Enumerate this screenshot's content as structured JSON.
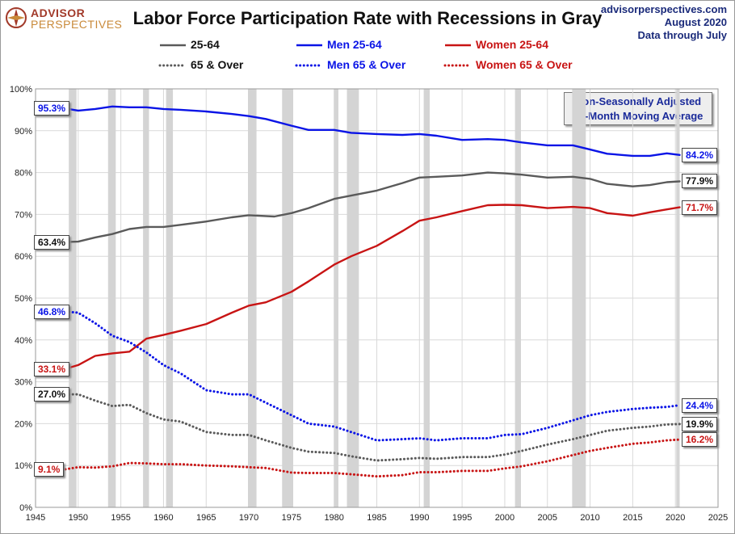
{
  "header": {
    "title": "Labor Force Participation Rate with Recessions in Gray",
    "logo_line1": "ADVISOR",
    "logo_line2": "PERSPECTIVES",
    "source_line1": "advisorperspectives.com",
    "source_line2": "August  2020",
    "source_line3": "Data through  July"
  },
  "note": {
    "line1": "Non-Seasonally Adjusted",
    "line2": "12-Month Moving Average"
  },
  "colors": {
    "gray": "#5a5a5a",
    "blue": "#0a14e6",
    "red": "#c81414",
    "recession": "#d4d4d4",
    "grid": "#d9d9d9"
  },
  "chart_data": {
    "type": "line",
    "title": "Labor Force Participation Rate with Recessions in Gray",
    "xlim": [
      1945,
      2025
    ],
    "ylim": [
      0,
      100
    ],
    "x_ticks": [
      "1945",
      "1950",
      "1955",
      "1960",
      "1965",
      "1970",
      "1975",
      "1980",
      "1985",
      "1990",
      "1995",
      "2000",
      "2005",
      "2010",
      "2015",
      "2020",
      "2025"
    ],
    "y_ticks": [
      "0%",
      "10%",
      "20%",
      "30%",
      "40%",
      "50%",
      "60%",
      "70%",
      "80%",
      "90%",
      "100%"
    ],
    "grid": true,
    "legend_position": "top",
    "recessions": [
      [
        1948.9,
        1949.8
      ],
      [
        1953.5,
        1954.4
      ],
      [
        1957.6,
        1958.3
      ],
      [
        1960.3,
        1961.1
      ],
      [
        1969.9,
        1970.9
      ],
      [
        1973.9,
        1975.2
      ],
      [
        1980.0,
        1980.5
      ],
      [
        1981.5,
        1982.9
      ],
      [
        1990.5,
        1991.2
      ],
      [
        2001.2,
        2001.9
      ],
      [
        2007.9,
        2009.5
      ],
      [
        2020.1,
        2020.5
      ]
    ],
    "series": [
      {
        "name": "25-64",
        "color": "gray",
        "style": "solid",
        "end_label": "77.9%",
        "start_label": "63.4%",
        "points": [
          [
            1948.5,
            63.4
          ],
          [
            1950,
            63.5
          ],
          [
            1952,
            64.5
          ],
          [
            1954,
            65.3
          ],
          [
            1956,
            66.5
          ],
          [
            1958,
            67
          ],
          [
            1960,
            67
          ],
          [
            1962,
            67.5
          ],
          [
            1965,
            68.3
          ],
          [
            1968,
            69.3
          ],
          [
            1970,
            69.8
          ],
          [
            1973,
            69.5
          ],
          [
            1975,
            70.3
          ],
          [
            1977,
            71.5
          ],
          [
            1980,
            73.7
          ],
          [
            1982,
            74.5
          ],
          [
            1985,
            75.7
          ],
          [
            1988,
            77.5
          ],
          [
            1990,
            78.8
          ],
          [
            1992,
            79
          ],
          [
            1995,
            79.3
          ],
          [
            1998,
            80
          ],
          [
            2000,
            79.8
          ],
          [
            2002,
            79.5
          ],
          [
            2005,
            78.8
          ],
          [
            2008,
            79
          ],
          [
            2010,
            78.5
          ],
          [
            2012,
            77.3
          ],
          [
            2015,
            76.7
          ],
          [
            2017,
            77
          ],
          [
            2019,
            77.7
          ],
          [
            2020.5,
            77.9
          ]
        ]
      },
      {
        "name": "Men 25-64",
        "color": "blue",
        "style": "solid",
        "end_label": "84.2%",
        "start_label": "95.3%",
        "points": [
          [
            1948.5,
            95.3
          ],
          [
            1950,
            94.8
          ],
          [
            1952,
            95.2
          ],
          [
            1954,
            95.8
          ],
          [
            1956,
            95.6
          ],
          [
            1958,
            95.6
          ],
          [
            1960,
            95.2
          ],
          [
            1962,
            95
          ],
          [
            1965,
            94.6
          ],
          [
            1968,
            94
          ],
          [
            1970,
            93.5
          ],
          [
            1972,
            92.8
          ],
          [
            1975,
            91.2
          ],
          [
            1977,
            90.2
          ],
          [
            1980,
            90.2
          ],
          [
            1982,
            89.5
          ],
          [
            1985,
            89.2
          ],
          [
            1988,
            89
          ],
          [
            1990,
            89.2
          ],
          [
            1992,
            88.8
          ],
          [
            1995,
            87.8
          ],
          [
            1998,
            88
          ],
          [
            2000,
            87.8
          ],
          [
            2002,
            87.2
          ],
          [
            2005,
            86.5
          ],
          [
            2008,
            86.5
          ],
          [
            2010,
            85.5
          ],
          [
            2012,
            84.5
          ],
          [
            2015,
            84
          ],
          [
            2017,
            84
          ],
          [
            2019,
            84.6
          ],
          [
            2020.5,
            84.2
          ]
        ]
      },
      {
        "name": "Women 25-64",
        "color": "red",
        "style": "solid",
        "end_label": "71.7%",
        "start_label": "33.1%",
        "points": [
          [
            1948.5,
            33.1
          ],
          [
            1950,
            34
          ],
          [
            1952,
            36.2
          ],
          [
            1954,
            36.8
          ],
          [
            1956,
            37.2
          ],
          [
            1958,
            40.3
          ],
          [
            1960,
            41.2
          ],
          [
            1962,
            42.2
          ],
          [
            1965,
            43.8
          ],
          [
            1968,
            46.5
          ],
          [
            1970,
            48.2
          ],
          [
            1972,
            49
          ],
          [
            1975,
            51.5
          ],
          [
            1977,
            54
          ],
          [
            1980,
            58
          ],
          [
            1982,
            60
          ],
          [
            1985,
            62.5
          ],
          [
            1988,
            66
          ],
          [
            1990,
            68.5
          ],
          [
            1992,
            69.3
          ],
          [
            1995,
            70.8
          ],
          [
            1998,
            72.2
          ],
          [
            2000,
            72.3
          ],
          [
            2002,
            72.2
          ],
          [
            2005,
            71.5
          ],
          [
            2008,
            71.8
          ],
          [
            2010,
            71.5
          ],
          [
            2012,
            70.3
          ],
          [
            2015,
            69.7
          ],
          [
            2017,
            70.5
          ],
          [
            2019,
            71.2
          ],
          [
            2020.5,
            71.7
          ]
        ]
      },
      {
        "name": "65 & Over",
        "color": "gray",
        "style": "dotted",
        "end_label": "19.9%",
        "start_label": "27.0%",
        "points": [
          [
            1948.5,
            27
          ],
          [
            1950,
            27
          ],
          [
            1952,
            25.5
          ],
          [
            1954,
            24.2
          ],
          [
            1956,
            24.5
          ],
          [
            1958,
            22.5
          ],
          [
            1960,
            21
          ],
          [
            1962,
            20.5
          ],
          [
            1965,
            18
          ],
          [
            1968,
            17.3
          ],
          [
            1970,
            17.3
          ],
          [
            1972,
            16
          ],
          [
            1975,
            14.2
          ],
          [
            1977,
            13.3
          ],
          [
            1980,
            13
          ],
          [
            1982,
            12.2
          ],
          [
            1985,
            11.2
          ],
          [
            1988,
            11.5
          ],
          [
            1990,
            11.8
          ],
          [
            1992,
            11.6
          ],
          [
            1995,
            12
          ],
          [
            1998,
            12
          ],
          [
            2000,
            12.6
          ],
          [
            2002,
            13.5
          ],
          [
            2005,
            15
          ],
          [
            2008,
            16.3
          ],
          [
            2010,
            17.3
          ],
          [
            2012,
            18.3
          ],
          [
            2015,
            19
          ],
          [
            2017,
            19.3
          ],
          [
            2019,
            19.8
          ],
          [
            2020.5,
            19.9
          ]
        ]
      },
      {
        "name": "Men 65 & Over",
        "color": "blue",
        "style": "dotted",
        "end_label": "24.4%",
        "start_label": "46.8%",
        "points": [
          [
            1948.5,
            46.8
          ],
          [
            1950,
            46.5
          ],
          [
            1952,
            44
          ],
          [
            1954,
            41
          ],
          [
            1956,
            39.5
          ],
          [
            1958,
            37
          ],
          [
            1960,
            34
          ],
          [
            1962,
            32
          ],
          [
            1965,
            28
          ],
          [
            1968,
            27
          ],
          [
            1970,
            27
          ],
          [
            1972,
            25
          ],
          [
            1975,
            22
          ],
          [
            1977,
            20
          ],
          [
            1980,
            19.3
          ],
          [
            1982,
            18
          ],
          [
            1985,
            16
          ],
          [
            1988,
            16.3
          ],
          [
            1990,
            16.5
          ],
          [
            1992,
            16
          ],
          [
            1995,
            16.5
          ],
          [
            1998,
            16.5
          ],
          [
            2000,
            17.3
          ],
          [
            2002,
            17.5
          ],
          [
            2005,
            19
          ],
          [
            2008,
            20.8
          ],
          [
            2010,
            22
          ],
          [
            2012,
            22.8
          ],
          [
            2015,
            23.5
          ],
          [
            2017,
            23.8
          ],
          [
            2019,
            24
          ],
          [
            2020.5,
            24.4
          ]
        ]
      },
      {
        "name": "Women 65 & Over",
        "color": "red",
        "style": "dotted",
        "end_label": "16.2%",
        "start_label": "9.1%",
        "points": [
          [
            1948.5,
            9.1
          ],
          [
            1950,
            9.6
          ],
          [
            1952,
            9.5
          ],
          [
            1954,
            9.8
          ],
          [
            1956,
            10.6
          ],
          [
            1958,
            10.5
          ],
          [
            1960,
            10.3
          ],
          [
            1962,
            10.3
          ],
          [
            1965,
            10
          ],
          [
            1968,
            9.8
          ],
          [
            1970,
            9.6
          ],
          [
            1972,
            9.4
          ],
          [
            1975,
            8.3
          ],
          [
            1977,
            8.2
          ],
          [
            1980,
            8.2
          ],
          [
            1982,
            7.9
          ],
          [
            1985,
            7.4
          ],
          [
            1988,
            7.7
          ],
          [
            1990,
            8.4
          ],
          [
            1992,
            8.4
          ],
          [
            1995,
            8.7
          ],
          [
            1998,
            8.7
          ],
          [
            2000,
            9.3
          ],
          [
            2002,
            9.8
          ],
          [
            2005,
            11
          ],
          [
            2008,
            12.5
          ],
          [
            2010,
            13.5
          ],
          [
            2012,
            14.2
          ],
          [
            2015,
            15.2
          ],
          [
            2017,
            15.5
          ],
          [
            2019,
            16
          ],
          [
            2020.5,
            16.2
          ]
        ]
      }
    ]
  }
}
